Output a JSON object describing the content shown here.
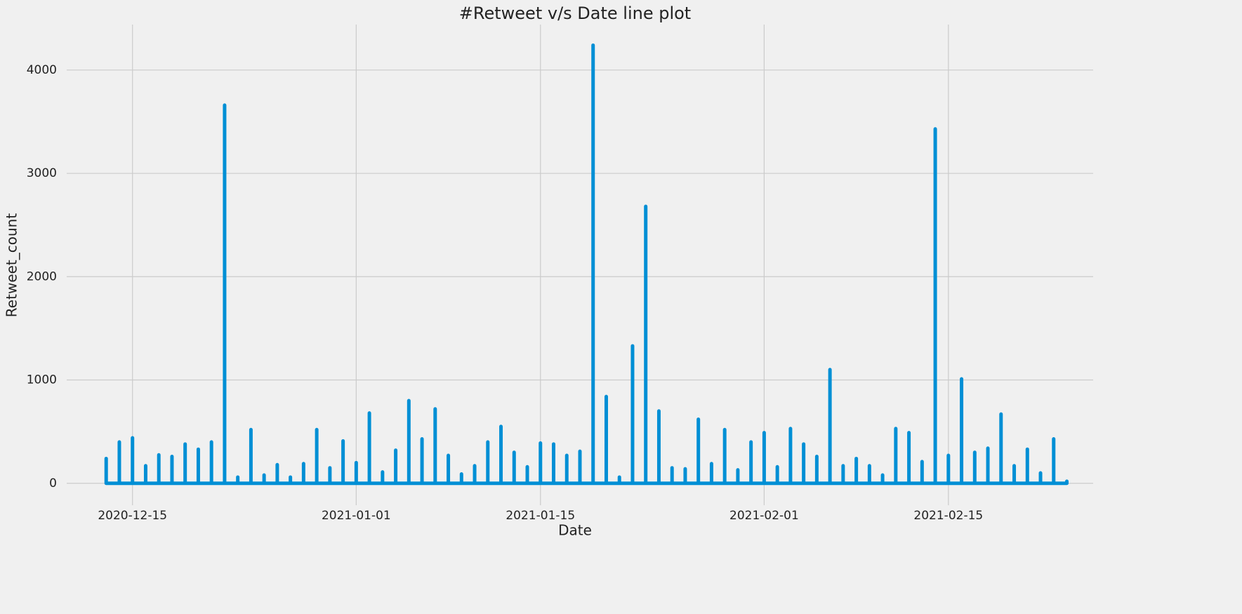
{
  "chart_data": {
    "type": "line",
    "title": "#Retweet v/s Date line plot",
    "x_label": "Date",
    "y_label": "Retweet_count",
    "color": "#008fd5",
    "grid": true,
    "x": [
      "2020-12-13",
      "2020-12-13",
      "2020-12-13",
      "2020-12-14",
      "2020-12-14",
      "2020-12-14",
      "2020-12-15",
      "2020-12-15",
      "2020-12-15",
      "2020-12-16",
      "2020-12-16",
      "2020-12-16",
      "2020-12-17",
      "2020-12-17",
      "2020-12-17",
      "2020-12-18",
      "2020-12-18",
      "2020-12-18",
      "2020-12-19",
      "2020-12-19",
      "2020-12-19",
      "2020-12-20",
      "2020-12-20",
      "2020-12-20",
      "2020-12-21",
      "2020-12-21",
      "2020-12-21",
      "2020-12-22",
      "2020-12-22",
      "2020-12-22",
      "2020-12-23",
      "2020-12-23",
      "2020-12-23",
      "2020-12-24",
      "2020-12-24",
      "2020-12-24",
      "2020-12-25",
      "2020-12-25",
      "2020-12-25",
      "2020-12-26",
      "2020-12-26",
      "2020-12-26",
      "2020-12-27",
      "2020-12-27",
      "2020-12-27",
      "2020-12-28",
      "2020-12-28",
      "2020-12-28",
      "2020-12-29",
      "2020-12-29",
      "2020-12-29",
      "2020-12-30",
      "2020-12-30",
      "2020-12-30",
      "2020-12-31",
      "2020-12-31",
      "2020-12-31",
      "2021-01-01",
      "2021-01-01",
      "2021-01-01",
      "2021-01-02",
      "2021-01-02",
      "2021-01-02",
      "2021-01-03",
      "2021-01-03",
      "2021-01-03",
      "2021-01-04",
      "2021-01-04",
      "2021-01-04",
      "2021-01-05",
      "2021-01-05",
      "2021-01-05",
      "2021-01-06",
      "2021-01-06",
      "2021-01-06",
      "2021-01-07",
      "2021-01-07",
      "2021-01-07",
      "2021-01-08",
      "2021-01-08",
      "2021-01-08",
      "2021-01-09",
      "2021-01-09",
      "2021-01-09",
      "2021-01-10",
      "2021-01-10",
      "2021-01-10",
      "2021-01-11",
      "2021-01-11",
      "2021-01-11",
      "2021-01-12",
      "2021-01-12",
      "2021-01-12",
      "2021-01-13",
      "2021-01-13",
      "2021-01-13",
      "2021-01-14",
      "2021-01-14",
      "2021-01-14",
      "2021-01-15",
      "2021-01-15",
      "2021-01-15",
      "2021-01-16",
      "2021-01-16",
      "2021-01-16",
      "2021-01-17",
      "2021-01-17",
      "2021-01-17",
      "2021-01-18",
      "2021-01-18",
      "2021-01-18",
      "2021-01-19",
      "2021-01-19",
      "2021-01-19",
      "2021-01-20",
      "2021-01-20",
      "2021-01-20",
      "2021-01-21",
      "2021-01-21",
      "2021-01-21",
      "2021-01-22",
      "2021-01-22",
      "2021-01-22",
      "2021-01-23",
      "2021-01-23",
      "2021-01-23",
      "2021-01-24",
      "2021-01-24",
      "2021-01-24",
      "2021-01-25",
      "2021-01-25",
      "2021-01-25",
      "2021-01-26",
      "2021-01-26",
      "2021-01-26",
      "2021-01-27",
      "2021-01-27",
      "2021-01-27",
      "2021-01-28",
      "2021-01-28",
      "2021-01-28",
      "2021-01-29",
      "2021-01-29",
      "2021-01-29",
      "2021-01-30",
      "2021-01-30",
      "2021-01-30",
      "2021-01-31",
      "2021-01-31",
      "2021-01-31",
      "2021-02-01",
      "2021-02-01",
      "2021-02-01",
      "2021-02-02",
      "2021-02-02",
      "2021-02-02",
      "2021-02-03",
      "2021-02-03",
      "2021-02-03",
      "2021-02-04",
      "2021-02-04",
      "2021-02-04",
      "2021-02-05",
      "2021-02-05",
      "2021-02-05",
      "2021-02-06",
      "2021-02-06",
      "2021-02-06",
      "2021-02-07",
      "2021-02-07",
      "2021-02-07",
      "2021-02-08",
      "2021-02-08",
      "2021-02-08",
      "2021-02-09",
      "2021-02-09",
      "2021-02-09",
      "2021-02-10",
      "2021-02-10",
      "2021-02-10",
      "2021-02-11",
      "2021-02-11",
      "2021-02-11",
      "2021-02-12",
      "2021-02-12",
      "2021-02-12",
      "2021-02-13",
      "2021-02-13",
      "2021-02-13",
      "2021-02-14",
      "2021-02-14",
      "2021-02-14",
      "2021-02-15",
      "2021-02-15",
      "2021-02-15",
      "2021-02-16",
      "2021-02-16",
      "2021-02-16",
      "2021-02-17",
      "2021-02-17",
      "2021-02-17",
      "2021-02-18",
      "2021-02-18",
      "2021-02-18",
      "2021-02-19",
      "2021-02-19",
      "2021-02-19",
      "2021-02-20",
      "2021-02-20",
      "2021-02-20",
      "2021-02-21",
      "2021-02-21",
      "2021-02-21",
      "2021-02-22",
      "2021-02-22",
      "2021-02-22",
      "2021-02-23",
      "2021-02-23",
      "2021-02-23",
      "2021-02-24",
      "2021-02-24",
      "2021-02-24"
    ],
    "values": [
      0,
      240,
      0,
      0,
      400,
      0,
      0,
      440,
      0,
      0,
      170,
      0,
      0,
      275,
      0,
      0,
      260,
      0,
      0,
      380,
      0,
      0,
      330,
      0,
      0,
      400,
      0,
      0,
      3660,
      0,
      0,
      60,
      0,
      0,
      520,
      0,
      0,
      80,
      0,
      0,
      180,
      0,
      0,
      60,
      0,
      0,
      190,
      0,
      0,
      520,
      0,
      0,
      150,
      0,
      0,
      410,
      0,
      0,
      200,
      0,
      0,
      680,
      0,
      0,
      110,
      0,
      0,
      320,
      0,
      0,
      800,
      0,
      0,
      430,
      0,
      0,
      720,
      0,
      0,
      270,
      0,
      0,
      90,
      0,
      0,
      170,
      0,
      0,
      400,
      0,
      0,
      550,
      0,
      0,
      300,
      0,
      0,
      160,
      0,
      0,
      390,
      0,
      0,
      380,
      0,
      0,
      270,
      0,
      0,
      310,
      0,
      0,
      4240,
      0,
      0,
      840,
      0,
      0,
      60,
      0,
      0,
      1330,
      0,
      0,
      2680,
      0,
      0,
      700,
      0,
      0,
      150,
      0,
      0,
      140,
      0,
      0,
      620,
      0,
      0,
      190,
      0,
      0,
      520,
      0,
      0,
      130,
      0,
      0,
      400,
      0,
      0,
      490,
      0,
      0,
      160,
      0,
      0,
      530,
      0,
      0,
      380,
      0,
      0,
      260,
      0,
      0,
      1100,
      0,
      0,
      170,
      0,
      0,
      240,
      0,
      0,
      170,
      0,
      0,
      80,
      0,
      0,
      530,
      0,
      0,
      490,
      0,
      0,
      210,
      0,
      0,
      3430,
      0,
      0,
      270,
      0,
      0,
      1010,
      0,
      0,
      300,
      0,
      0,
      340,
      0,
      0,
      670,
      0,
      0,
      170,
      0,
      0,
      330,
      0,
      0,
      100,
      0,
      0,
      430,
      0,
      0,
      20,
      0
    ],
    "xlim": [
      "2020-12-10",
      "2021-02-26"
    ],
    "xticks": [
      "2020-12-15",
      "2021-01-01",
      "2021-01-15",
      "2021-02-01",
      "2021-02-15"
    ],
    "ylim": [
      -212,
      4440
    ],
    "yticks": [
      0,
      1000,
      2000,
      3000,
      4000
    ]
  }
}
